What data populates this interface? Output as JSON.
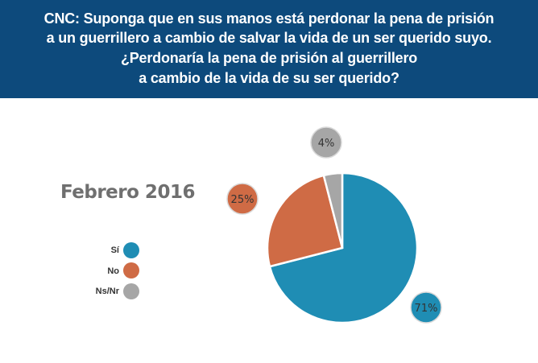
{
  "header": {
    "line1": "CNC: Suponga que en sus manos está perdonar la pena de prisión",
    "line2": "a un guerrillero a cambio de salvar la vida de un ser querido suyo.",
    "line3": "¿Perdonaría la pena de prisión al guerrillero",
    "line4": "a cambio de la vida de su ser querido?"
  },
  "colors": {
    "header_bg": "#0d4a7c",
    "si": "#1f8db4",
    "no": "#cf6b45",
    "nsnr": "#a6a6a6"
  },
  "chart_data": {
    "type": "pie",
    "subtitle": "Febrero 2016",
    "unit": "%",
    "slices": [
      {
        "label": "Sí",
        "value": 71,
        "display": "71%",
        "color": "#1f8db4"
      },
      {
        "label": "No",
        "value": 25,
        "display": "25%",
        "color": "#cf6b45"
      },
      {
        "label": "Ns/Nr",
        "value": 4,
        "display": "4%",
        "color": "#a6a6a6"
      }
    ],
    "legend_position": "left"
  }
}
